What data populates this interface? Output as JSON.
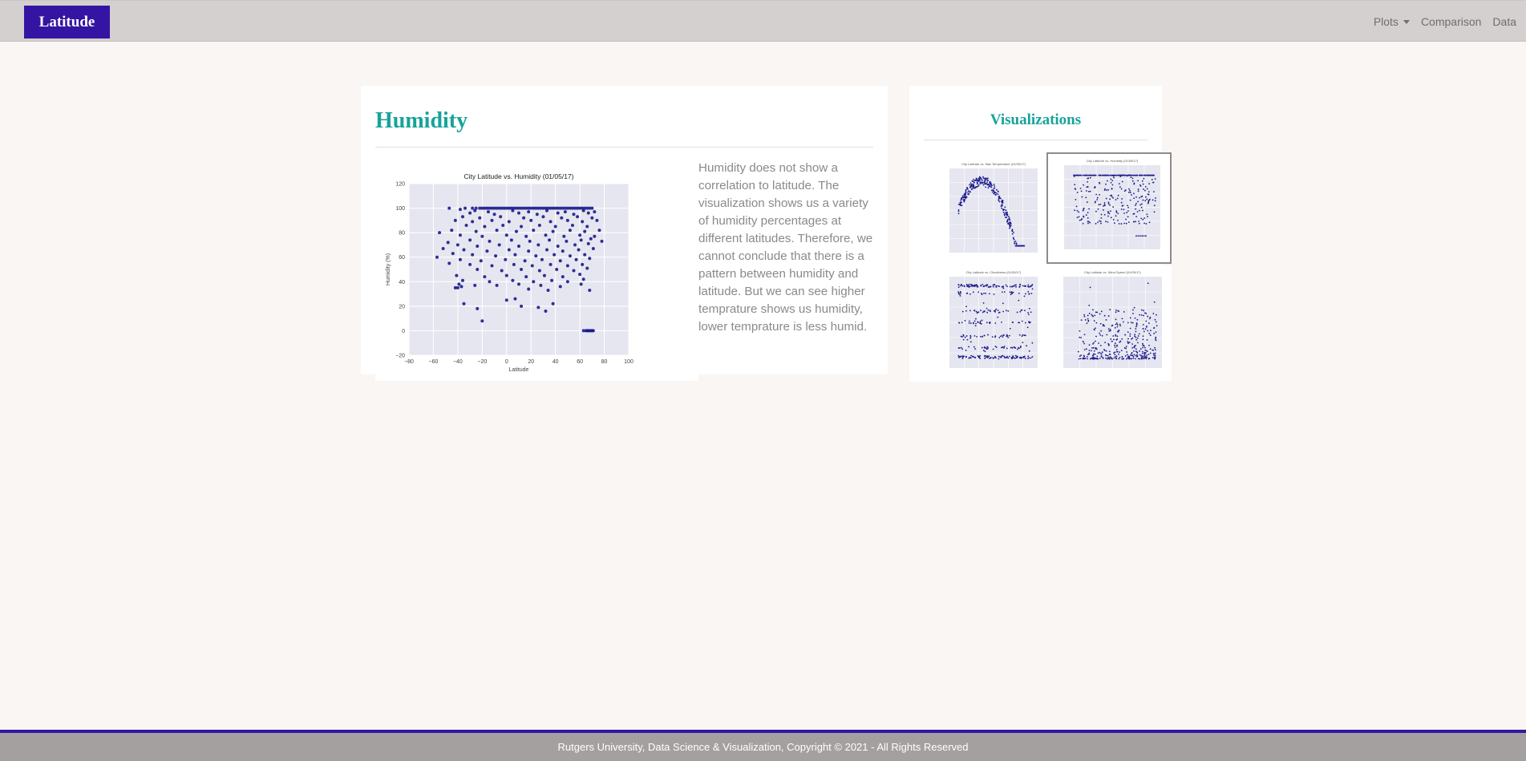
{
  "navbar": {
    "brand": "Latitude",
    "links": [
      {
        "label": "Plots",
        "dropdown": true
      },
      {
        "label": "Comparison"
      },
      {
        "label": "Data"
      }
    ]
  },
  "main": {
    "heading": "Humidity",
    "description": "Humidity does not show a correlation to latitude. The visualization shows us a variety of humidity percentages at different latitudes. Therefore, we cannot conclude that there is a pattern between humidity and latitude. But we can see higher temprature shows us humidity, lower temprature is less humid."
  },
  "sidebar": {
    "heading": "Visualizations",
    "thumbnails": [
      {
        "title": "City Latitude vs. Max Temperature (01/05/17)",
        "icon": "temperature-plot-thumbnail",
        "active": false
      },
      {
        "title": "City Latitude vs. Humidity (01/05/17)",
        "icon": "humidity-plot-thumbnail",
        "active": true
      },
      {
        "title": "City Latitude vs. Cloudiness (01/05/17)",
        "icon": "cloudiness-plot-thumbnail",
        "active": false
      },
      {
        "title": "City Latitude vs. Wind Speed (01/05/17)",
        "icon": "wind-speed-plot-thumbnail",
        "active": false
      }
    ]
  },
  "footer": {
    "text": "Rutgers University, Data Science & Visualization, Copyright © 2021 - All Rights Reserved"
  },
  "colors": {
    "brand": "#3415a3",
    "accent": "#16a39a",
    "points": "#1a1a8c",
    "plot_bg": "#e6e6f0"
  },
  "chart_data": {
    "type": "scatter",
    "title": "City Latitude vs. Humidity (01/05/17)",
    "xlabel": "Latitude",
    "ylabel": "Humidity (%)",
    "xlim": [
      -80,
      100
    ],
    "ylim": [
      -20,
      120
    ],
    "xticks": [
      -80,
      -60,
      -40,
      -20,
      0,
      20,
      40,
      60,
      80,
      100
    ],
    "yticks": [
      -20,
      0,
      20,
      40,
      60,
      80,
      100,
      120
    ],
    "grid": true,
    "points": [
      [
        -47,
        100
      ],
      [
        -34,
        100
      ],
      [
        -28,
        100
      ],
      [
        -25,
        100
      ],
      [
        -22,
        100
      ],
      [
        -20,
        100
      ],
      [
        -18,
        100
      ],
      [
        -16,
        100
      ],
      [
        -14,
        100
      ],
      [
        -12,
        100
      ],
      [
        -10,
        100
      ],
      [
        -8,
        100
      ],
      [
        -6,
        100
      ],
      [
        -4,
        100
      ],
      [
        -2,
        100
      ],
      [
        0,
        100
      ],
      [
        2,
        100
      ],
      [
        4,
        100
      ],
      [
        6,
        100
      ],
      [
        8,
        100
      ],
      [
        10,
        100
      ],
      [
        12,
        100
      ],
      [
        14,
        100
      ],
      [
        16,
        100
      ],
      [
        18,
        100
      ],
      [
        20,
        100
      ],
      [
        22,
        100
      ],
      [
        24,
        100
      ],
      [
        26,
        100
      ],
      [
        28,
        100
      ],
      [
        30,
        100
      ],
      [
        32,
        100
      ],
      [
        34,
        100
      ],
      [
        36,
        100
      ],
      [
        38,
        100
      ],
      [
        40,
        100
      ],
      [
        42,
        100
      ],
      [
        44,
        100
      ],
      [
        46,
        100
      ],
      [
        48,
        100
      ],
      [
        50,
        100
      ],
      [
        52,
        100
      ],
      [
        54,
        100
      ],
      [
        56,
        100
      ],
      [
        58,
        100
      ],
      [
        60,
        100
      ],
      [
        62,
        100
      ],
      [
        64,
        100
      ],
      [
        66,
        100
      ],
      [
        68,
        100
      ],
      [
        70,
        100
      ],
      [
        -38,
        99
      ],
      [
        -26,
        98
      ],
      [
        -15,
        97
      ],
      [
        5,
        98
      ],
      [
        18,
        97
      ],
      [
        33,
        98
      ],
      [
        48,
        97
      ],
      [
        63,
        98
      ],
      [
        72,
        97
      ],
      [
        -30,
        96
      ],
      [
        -10,
        95
      ],
      [
        10,
        96
      ],
      [
        25,
        95
      ],
      [
        42,
        96
      ],
      [
        55,
        95
      ],
      [
        67,
        96
      ],
      [
        -36,
        93
      ],
      [
        -22,
        92
      ],
      [
        -5,
        93
      ],
      [
        14,
        92
      ],
      [
        30,
        93
      ],
      [
        45,
        92
      ],
      [
        58,
        93
      ],
      [
        70,
        92
      ],
      [
        -42,
        90
      ],
      [
        -28,
        89
      ],
      [
        -12,
        90
      ],
      [
        2,
        89
      ],
      [
        20,
        90
      ],
      [
        36,
        89
      ],
      [
        50,
        90
      ],
      [
        62,
        89
      ],
      [
        74,
        90
      ],
      [
        -33,
        86
      ],
      [
        -18,
        85
      ],
      [
        -3,
        86
      ],
      [
        12,
        85
      ],
      [
        27,
        86
      ],
      [
        40,
        85
      ],
      [
        54,
        86
      ],
      [
        66,
        85
      ],
      [
        -45,
        82
      ],
      [
        -25,
        81
      ],
      [
        -8,
        82
      ],
      [
        8,
        81
      ],
      [
        22,
        82
      ],
      [
        38,
        81
      ],
      [
        52,
        82
      ],
      [
        64,
        81
      ],
      [
        76,
        82
      ],
      [
        -55,
        80
      ],
      [
        -38,
        78
      ],
      [
        -20,
        77
      ],
      [
        0,
        78
      ],
      [
        16,
        77
      ],
      [
        32,
        78
      ],
      [
        47,
        77
      ],
      [
        60,
        78
      ],
      [
        72,
        77
      ],
      [
        -30,
        74
      ],
      [
        -14,
        73
      ],
      [
        4,
        74
      ],
      [
        19,
        73
      ],
      [
        35,
        74
      ],
      [
        49,
        73
      ],
      [
        61,
        74
      ],
      [
        69,
        75
      ],
      [
        -48,
        72
      ],
      [
        -40,
        70
      ],
      [
        -24,
        69
      ],
      [
        -6,
        70
      ],
      [
        10,
        69
      ],
      [
        26,
        70
      ],
      [
        42,
        69
      ],
      [
        56,
        70
      ],
      [
        67,
        71
      ],
      [
        78,
        73
      ],
      [
        -52,
        67
      ],
      [
        -35,
        66
      ],
      [
        -16,
        65
      ],
      [
        2,
        66
      ],
      [
        18,
        65
      ],
      [
        33,
        66
      ],
      [
        46,
        65
      ],
      [
        59,
        66
      ],
      [
        71,
        67
      ],
      [
        -44,
        63
      ],
      [
        -28,
        62
      ],
      [
        -9,
        61
      ],
      [
        7,
        62
      ],
      [
        24,
        61
      ],
      [
        39,
        62
      ],
      [
        52,
        61
      ],
      [
        64,
        62
      ],
      [
        -57,
        60
      ],
      [
        -38,
        58
      ],
      [
        -21,
        57
      ],
      [
        -1,
        58
      ],
      [
        15,
        57
      ],
      [
        29,
        58
      ],
      [
        44,
        57
      ],
      [
        57,
        58
      ],
      [
        68,
        59
      ],
      [
        -47,
        55
      ],
      [
        -30,
        54
      ],
      [
        -12,
        53
      ],
      [
        6,
        54
      ],
      [
        21,
        53
      ],
      [
        36,
        54
      ],
      [
        50,
        53
      ],
      [
        62,
        54
      ],
      [
        -24,
        50
      ],
      [
        -4,
        49
      ],
      [
        12,
        50
      ],
      [
        27,
        49
      ],
      [
        41,
        50
      ],
      [
        55,
        49
      ],
      [
        66,
        51
      ],
      [
        -41,
        45
      ],
      [
        -18,
        44
      ],
      [
        0,
        45
      ],
      [
        16,
        44
      ],
      [
        31,
        45
      ],
      [
        46,
        44
      ],
      [
        60,
        46
      ],
      [
        -36,
        41
      ],
      [
        -14,
        40
      ],
      [
        5,
        41
      ],
      [
        22,
        40
      ],
      [
        37,
        41
      ],
      [
        50,
        40
      ],
      [
        63,
        42
      ],
      [
        -39,
        38
      ],
      [
        -26,
        37
      ],
      [
        -8,
        37
      ],
      [
        10,
        38
      ],
      [
        28,
        37
      ],
      [
        44,
        36
      ],
      [
        61,
        38
      ],
      [
        -42,
        35
      ],
      [
        -40,
        35
      ],
      [
        -37,
        36
      ],
      [
        18,
        34
      ],
      [
        34,
        33
      ],
      [
        68,
        33
      ],
      [
        -35,
        22
      ],
      [
        -24,
        18
      ],
      [
        0,
        25
      ],
      [
        7,
        26
      ],
      [
        12,
        20
      ],
      [
        26,
        19
      ],
      [
        32,
        16
      ],
      [
        38,
        22
      ],
      [
        -20,
        8
      ],
      [
        63,
        0
      ],
      [
        65,
        0
      ],
      [
        66,
        0
      ],
      [
        67,
        0
      ],
      [
        68,
        0
      ],
      [
        69,
        0
      ],
      [
        70,
        0
      ],
      [
        71,
        0
      ]
    ]
  }
}
